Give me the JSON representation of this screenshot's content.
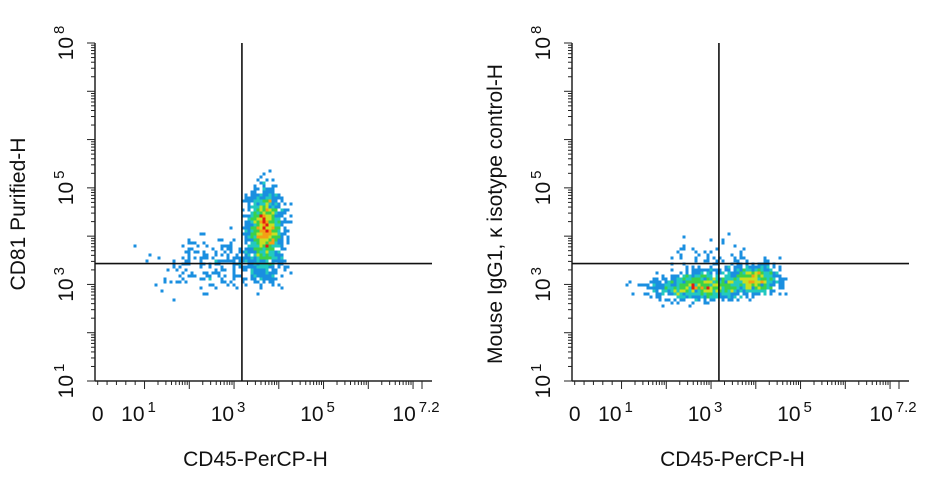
{
  "chart_data": [
    {
      "type": "scatter",
      "subtype": "flow-cytometry-density-dot-plot",
      "xlabel": "CD45-PerCP-H",
      "ylabel": "CD81 Purified-H",
      "x_scale": "biexponential (linear near 0, log above)",
      "y_scale": "log",
      "x_ticks": [
        {
          "label": "0"
        },
        {
          "label": "10",
          "exp": "1"
        },
        {
          "label": "10",
          "exp": "3"
        },
        {
          "label": "10",
          "exp": "5"
        },
        {
          "label": "10",
          "exp": "7.2"
        }
      ],
      "y_ticks": [
        {
          "label": "10",
          "exp": "1"
        },
        {
          "label": "10",
          "exp": "3"
        },
        {
          "label": "10",
          "exp": "5"
        },
        {
          "label": "10",
          "exp": "8"
        }
      ],
      "xlim_log10": [
        0,
        7.2
      ],
      "ylim_log10": [
        1,
        8
      ],
      "gate": {
        "x": 1500,
        "y": 2700
      },
      "populations": [
        {
          "x_center": 5000,
          "y_center": 15000,
          "x_spread_log10": 0.18,
          "y_spread_log10": 0.35,
          "count": 1700,
          "density": "high"
        },
        {
          "x_center": 4000,
          "y_center": 2500,
          "x_spread_log10": 0.28,
          "y_spread_log10": 0.28,
          "count": 200,
          "density": "low"
        },
        {
          "x_center": 250,
          "y_center": 2500,
          "x_spread_log10": 0.55,
          "y_spread_log10": 0.3,
          "count": 170,
          "density": "low"
        }
      ]
    },
    {
      "type": "scatter",
      "subtype": "flow-cytometry-density-dot-plot",
      "xlabel": "CD45-PerCP-H",
      "ylabel": "Mouse IgG1, κ isotype control-H",
      "x_scale": "biexponential (linear near 0, log above)",
      "y_scale": "log",
      "x_ticks": [
        {
          "label": "0"
        },
        {
          "label": "10",
          "exp": "1"
        },
        {
          "label": "10",
          "exp": "3"
        },
        {
          "label": "10",
          "exp": "5"
        },
        {
          "label": "10",
          "exp": "7.2"
        }
      ],
      "y_ticks": [
        {
          "label": "10",
          "exp": "1"
        },
        {
          "label": "10",
          "exp": "3"
        },
        {
          "label": "10",
          "exp": "5"
        },
        {
          "label": "10",
          "exp": "8"
        }
      ],
      "xlim_log10": [
        0,
        7.2
      ],
      "ylim_log10": [
        1,
        8
      ],
      "gate": {
        "x": 1500,
        "y": 2700
      },
      "populations": [
        {
          "x_center": 600,
          "y_center": 900,
          "x_spread_log10": 0.5,
          "y_spread_log10": 0.13,
          "count": 1100,
          "density": "high"
        },
        {
          "x_center": 10000,
          "y_center": 1300,
          "x_spread_log10": 0.25,
          "y_spread_log10": 0.13,
          "count": 650,
          "density": "high"
        },
        {
          "x_center": 1500,
          "y_center": 2000,
          "x_spread_log10": 0.6,
          "y_spread_log10": 0.25,
          "count": 150,
          "density": "low"
        }
      ]
    }
  ]
}
